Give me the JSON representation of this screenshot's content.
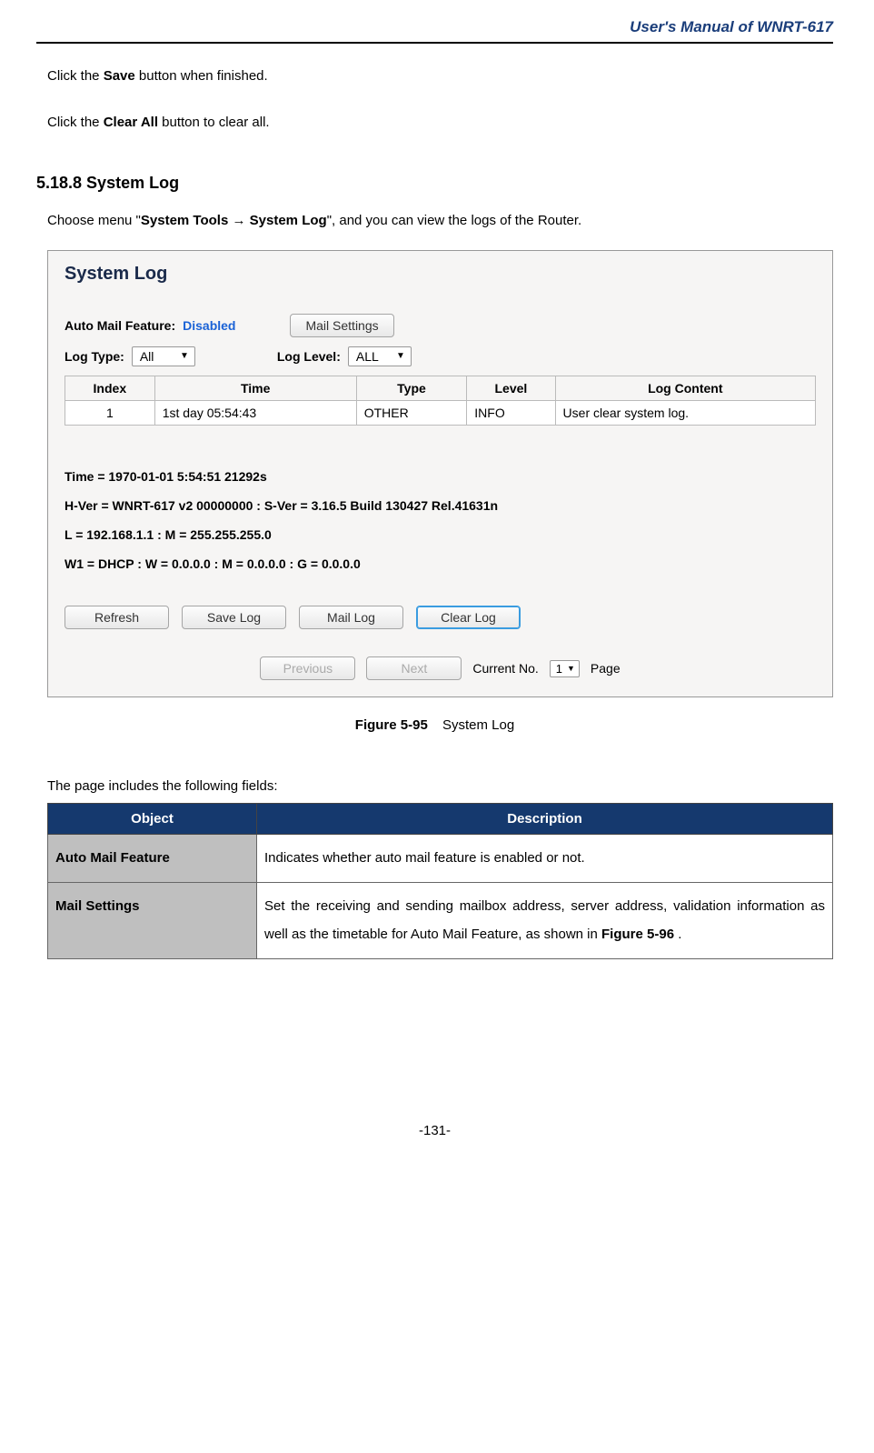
{
  "header": {
    "title": "User's  Manual  of  WNRT-617"
  },
  "intro": {
    "line1_pre": "Click the ",
    "line1_bold": "Save",
    "line1_post": " button when finished.",
    "line2_pre": "Click the ",
    "line2_bold": "Clear All",
    "line2_post": " button to clear all."
  },
  "section": {
    "heading": "5.18.8 System Log",
    "nav_pre": "Choose menu \"",
    "nav_bold1": "System Tools",
    "nav_arrow": "  →  ",
    "nav_bold2": "System Log",
    "nav_post": "\", and you can view the logs of the Router."
  },
  "screenshot": {
    "title": "System Log",
    "auto_mail_label": "Auto Mail Feature:",
    "auto_mail_value": "Disabled",
    "mail_settings_btn": "Mail Settings",
    "log_type_label": "Log Type:",
    "log_type_value": "All",
    "log_level_label": "Log Level:",
    "log_level_value": "ALL",
    "table": {
      "headers": {
        "index": "Index",
        "time": "Time",
        "type": "Type",
        "level": "Level",
        "content": "Log Content"
      },
      "row": {
        "index": "1",
        "time": "1st day 05:54:43",
        "type": "OTHER",
        "level": "INFO",
        "content": "User clear system log."
      }
    },
    "info": {
      "line1": "Time = 1970-01-01 5:54:51 21292s",
      "line2": "H-Ver = WNRT-617 v2 00000000 : S-Ver = 3.16.5 Build 130427 Rel.41631n",
      "line3": "L = 192.168.1.1 : M = 255.255.255.0",
      "line4": "W1 = DHCP : W = 0.0.0.0 : M = 0.0.0.0 : G = 0.0.0.0"
    },
    "buttons": {
      "refresh": "Refresh",
      "save_log": "Save Log",
      "mail_log": "Mail Log",
      "clear_log": "Clear Log"
    },
    "pager": {
      "previous": "Previous",
      "next": "Next",
      "current_no_label": "Current No.",
      "current_no_value": "1",
      "page_label": "Page"
    }
  },
  "figure": {
    "number": "Figure 5-95",
    "caption": "System Log"
  },
  "fields_intro": "The page includes the following fields:",
  "desc_table": {
    "headers": {
      "object": "Object",
      "description": "Description"
    },
    "rows": [
      {
        "object": "Auto Mail Feature",
        "description": "Indicates whether auto mail feature is enabled or not."
      },
      {
        "object": "Mail Settings",
        "description": "Set the receiving and sending mailbox address, server address, validation information as well as the timetable for Auto Mail Feature, as shown in ",
        "desc_bold": "Figure 5-96",
        "desc_post": "    ."
      }
    ]
  },
  "page_number": "-131-"
}
